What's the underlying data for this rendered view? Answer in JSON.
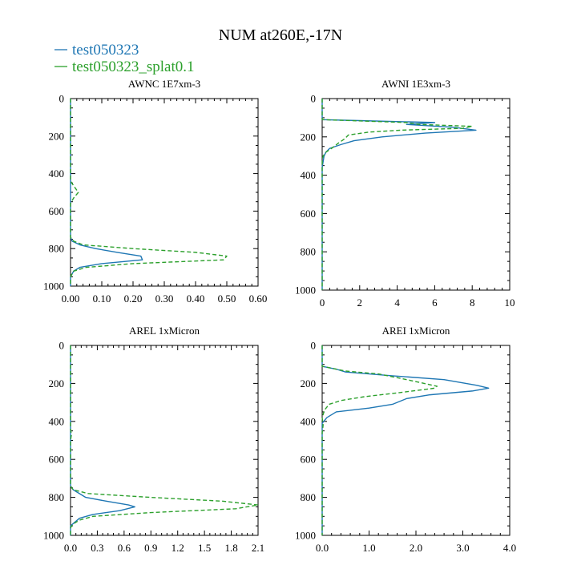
{
  "title": "NUM at260E,-17N",
  "colors": {
    "series1": "#1f77b4",
    "series2": "#2ca02c",
    "axis": "#000000"
  },
  "legend": [
    {
      "label": "test050323",
      "color": "#1f77b4",
      "dash": "solid"
    },
    {
      "label": "test050323_splat0.1",
      "color": "#2ca02c",
      "dash": "dashed"
    }
  ],
  "chart_data": [
    {
      "type": "line",
      "title": "AWNC 1E7xm-3",
      "xlim": [
        0,
        0.6
      ],
      "ylim": [
        1000,
        0
      ],
      "xticks": [
        "0.00",
        "0.10",
        "0.20",
        "0.30",
        "0.40",
        "0.50",
        "0.60"
      ],
      "yticks": [
        "0",
        "200",
        "400",
        "600",
        "800",
        "1000"
      ],
      "series": [
        {
          "values": [
            [
              0,
              0
            ],
            [
              0,
              740
            ],
            [
              0.005,
              760
            ],
            [
              0.03,
              780
            ],
            [
              0.08,
              800
            ],
            [
              0.15,
              820
            ],
            [
              0.225,
              840
            ],
            [
              0.23,
              860
            ],
            [
              0.1,
              880
            ],
            [
              0.03,
              900
            ],
            [
              0.01,
              920
            ],
            [
              0,
              950
            ],
            [
              0,
              1000
            ]
          ]
        },
        {
          "values": [
            [
              0,
              0
            ],
            [
              0,
              440
            ],
            [
              0.012,
              470
            ],
            [
              0.025,
              500
            ],
            [
              0.01,
              530
            ],
            [
              0,
              560
            ],
            [
              0,
              740
            ],
            [
              0.01,
              760
            ],
            [
              0.04,
              780
            ],
            [
              0.2,
              800
            ],
            [
              0.4,
              820
            ],
            [
              0.5,
              840
            ],
            [
              0.49,
              860
            ],
            [
              0.2,
              880
            ],
            [
              0.05,
              900
            ],
            [
              0.01,
              920
            ],
            [
              0,
              950
            ],
            [
              0,
              1000
            ]
          ]
        }
      ]
    },
    {
      "type": "line",
      "title": "AWNI 1E3xm-3",
      "xlim": [
        0,
        10
      ],
      "ylim": [
        1000,
        0
      ],
      "xticks": [
        "0",
        "2",
        "4",
        "6",
        "8",
        "10"
      ],
      "yticks": [
        "0",
        "200",
        "400",
        "600",
        "800",
        "1000"
      ],
      "series": [
        {
          "values": [
            [
              0,
              0
            ],
            [
              0,
              110
            ],
            [
              2,
              115
            ],
            [
              6,
              125
            ],
            [
              4.5,
              135
            ],
            [
              7,
              150
            ],
            [
              8.2,
              165
            ],
            [
              5.5,
              180
            ],
            [
              3.2,
              200
            ],
            [
              1.7,
              220
            ],
            [
              1,
              240
            ],
            [
              0.4,
              260
            ],
            [
              0.2,
              280
            ],
            [
              0.1,
              300
            ],
            [
              0.05,
              330
            ],
            [
              0,
              360
            ],
            [
              0,
              1000
            ]
          ]
        },
        {
          "values": [
            [
              0,
              0
            ],
            [
              0,
              110
            ],
            [
              1.5,
              115
            ],
            [
              4.5,
              125
            ],
            [
              5.2,
              135
            ],
            [
              8,
              145
            ],
            [
              7.5,
              155
            ],
            [
              4.2,
              165
            ],
            [
              2.5,
              175
            ],
            [
              1.4,
              190
            ],
            [
              1.2,
              210
            ],
            [
              0.9,
              230
            ],
            [
              0.5,
              260
            ],
            [
              0.2,
              280
            ],
            [
              0.05,
              300
            ],
            [
              0,
              320
            ],
            [
              0,
              1000
            ]
          ]
        }
      ]
    },
    {
      "type": "line",
      "title": "AREL 1xMicron",
      "xlim": [
        0,
        2.1
      ],
      "ylim": [
        1000,
        0
      ],
      "xticks": [
        "0.0",
        "0.3",
        "0.6",
        "0.9",
        "1.2",
        "1.5",
        "1.8",
        "2.1"
      ],
      "yticks": [
        "0",
        "200",
        "400",
        "600",
        "800",
        "1000"
      ],
      "series": [
        {
          "values": [
            [
              0,
              0
            ],
            [
              0,
              740
            ],
            [
              0.03,
              760
            ],
            [
              0.1,
              780
            ],
            [
              0.17,
              800
            ],
            [
              0.4,
              820
            ],
            [
              0.65,
              840
            ],
            [
              0.72,
              850
            ],
            [
              0.55,
              870
            ],
            [
              0.25,
              890
            ],
            [
              0.1,
              910
            ],
            [
              0.05,
              930
            ],
            [
              0,
              950
            ],
            [
              0,
              1000
            ]
          ]
        },
        {
          "values": [
            [
              0,
              0
            ],
            [
              0,
              440
            ],
            [
              0.01,
              470
            ],
            [
              0,
              500
            ],
            [
              0,
              740
            ],
            [
              0.03,
              760
            ],
            [
              0.2,
              780
            ],
            [
              0.9,
              800
            ],
            [
              1.7,
              820
            ],
            [
              2.1,
              840
            ],
            [
              1.85,
              860
            ],
            [
              0.9,
              880
            ],
            [
              0.25,
              900
            ],
            [
              0.1,
              920
            ],
            [
              0.03,
              940
            ],
            [
              0,
              960
            ],
            [
              0,
              1000
            ]
          ]
        }
      ]
    },
    {
      "type": "line",
      "title": "AREI 1xMicron",
      "xlim": [
        0,
        4
      ],
      "ylim": [
        1000,
        0
      ],
      "xticks": [
        "0.0",
        "1.0",
        "2.0",
        "3.0",
        "4.0"
      ],
      "yticks": [
        "0",
        "200",
        "400",
        "600",
        "800",
        "1000"
      ],
      "series": [
        {
          "values": [
            [
              0,
              0
            ],
            [
              0,
              110
            ],
            [
              0.3,
              125
            ],
            [
              0.5,
              140
            ],
            [
              1.5,
              160
            ],
            [
              2.6,
              180
            ],
            [
              3.3,
              210
            ],
            [
              3.55,
              225
            ],
            [
              3.2,
              240
            ],
            [
              2.3,
              260
            ],
            [
              1.8,
              280
            ],
            [
              1.5,
              310
            ],
            [
              1,
              330
            ],
            [
              0.3,
              350
            ],
            [
              0.1,
              380
            ],
            [
              0,
              410
            ],
            [
              0,
              1000
            ]
          ]
        },
        {
          "values": [
            [
              0,
              0
            ],
            [
              0,
              110
            ],
            [
              0.2,
              120
            ],
            [
              0.5,
              135
            ],
            [
              1.2,
              150
            ],
            [
              1.8,
              180
            ],
            [
              2.45,
              215
            ],
            [
              2.4,
              225
            ],
            [
              1.6,
              250
            ],
            [
              0.9,
              270
            ],
            [
              0.4,
              290
            ],
            [
              0.15,
              310
            ],
            [
              0.05,
              340
            ],
            [
              0,
              380
            ],
            [
              0.02,
              420
            ],
            [
              0,
              460
            ],
            [
              0,
              1000
            ]
          ]
        }
      ]
    }
  ]
}
